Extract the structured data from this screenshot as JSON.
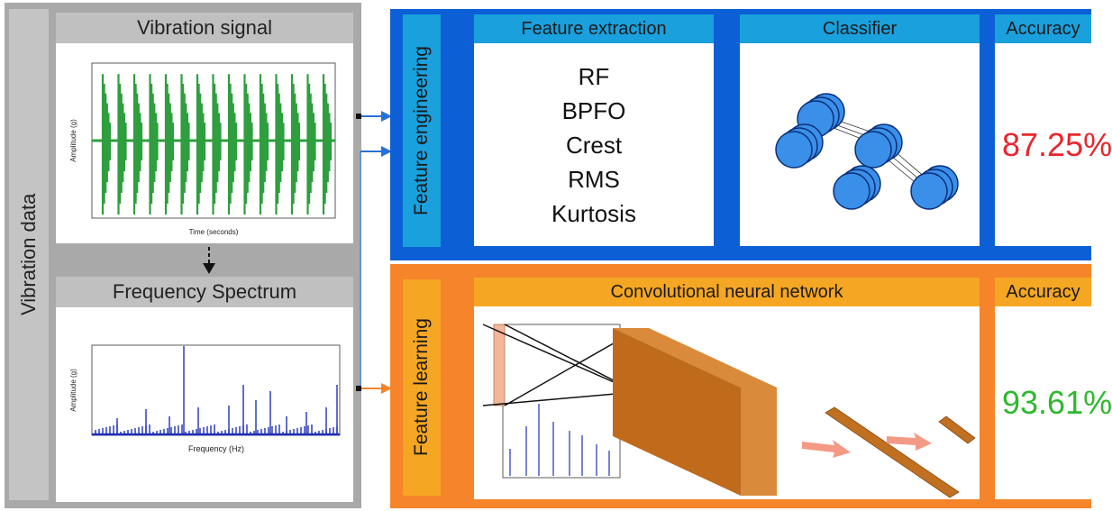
{
  "left": {
    "vertical_label": "Vibration data",
    "signal_title": "Vibration signal",
    "signal_xlabel": "Time (seconds)",
    "signal_ylabel": "Amplitude (g)",
    "spectrum_title": "Frequency Spectrum",
    "spectrum_xlabel": "Frequency (Hz)",
    "spectrum_ylabel": "Amplitude (g)"
  },
  "engineering": {
    "side_label": "Feature engineering",
    "feature_title": "Feature extraction",
    "features": [
      "RF",
      "BPFO",
      "Crest",
      "RMS",
      "Kurtosis"
    ],
    "classifier_title": "Classifier",
    "accuracy_title": "Accuracy",
    "accuracy_value": "87.25%"
  },
  "learning": {
    "side_label": "Feature learning",
    "cnn_title": "Convolutional neural network",
    "accuracy_title": "Accuracy",
    "accuracy_value": "93.61%"
  },
  "colors": {
    "gray_bg": "#a9a9a9",
    "blue_bg": "#0d5fd6",
    "orange_bg": "#f5842a",
    "red_value": "#e8262d",
    "green_value": "#2eb82e"
  }
}
